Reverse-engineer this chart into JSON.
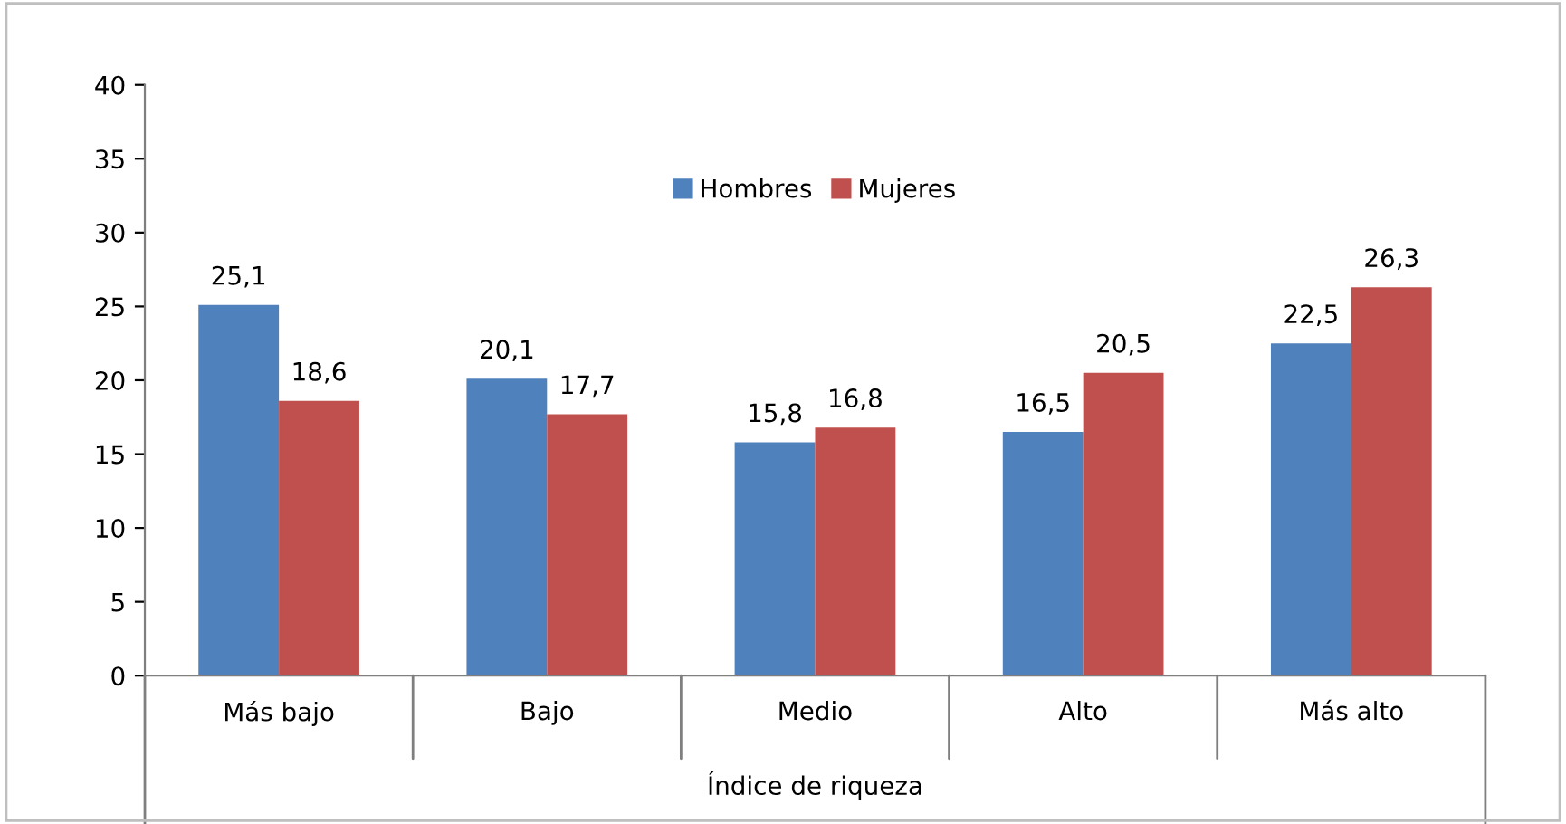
{
  "chart_data": {
    "type": "bar",
    "xlabel": "Índice de riqueza",
    "categories": [
      "Más bajo",
      "Bajo",
      "Medio",
      "Alto",
      "Más alto"
    ],
    "series": [
      {
        "name": "Hombres",
        "color": "#4f81bd",
        "values": [
          25.1,
          20.1,
          15.8,
          16.5,
          22.5
        ],
        "value_labels": [
          "25,1",
          "20,1",
          "15,8",
          "16,5",
          "22,5"
        ]
      },
      {
        "name": "Mujeres",
        "color": "#c0504d",
        "values": [
          18.6,
          17.7,
          16.8,
          20.5,
          26.3
        ],
        "value_labels": [
          "18,6",
          "17,7",
          "16,8",
          "20,5",
          "26,3"
        ]
      }
    ],
    "ylim": [
      0,
      40
    ],
    "yticks": [
      0,
      5,
      10,
      15,
      20,
      25,
      30,
      35,
      40
    ],
    "grid": false,
    "legend": "top"
  }
}
